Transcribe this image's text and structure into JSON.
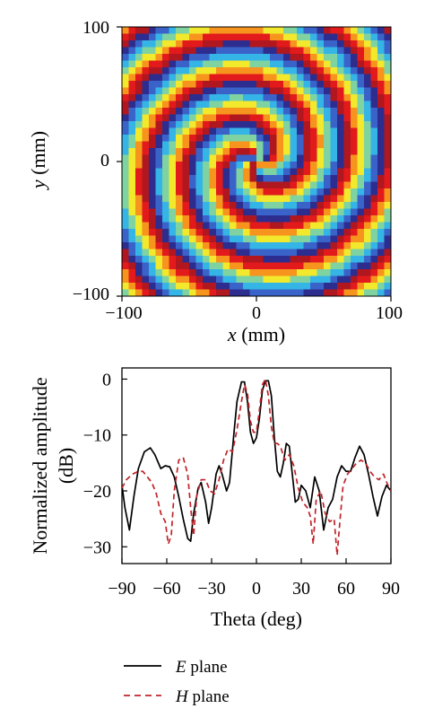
{
  "chart_data": [
    {
      "type": "heatmap",
      "xlabel_var": "x",
      "xlabel_unit": " (mm)",
      "ylabel_var": "y",
      "ylabel_unit": " (mm)",
      "xlim": [
        -100,
        100
      ],
      "ylim": [
        -100,
        100
      ],
      "x_ticks": [
        "−100",
        "0",
        "100"
      ],
      "y_ticks": [
        "100",
        "0",
        "−100"
      ],
      "grid_cells": 40,
      "spiral_arms": 3,
      "colormap": [
        "#2d2d8f",
        "#3a63c9",
        "#35b4e6",
        "#7fd3a0",
        "#f2e82c",
        "#f7941d",
        "#e31a1c",
        "#b0171f"
      ]
    },
    {
      "type": "line",
      "xlabel": "Theta (deg)",
      "ylabel_line1": "Normalized amplitude",
      "ylabel_line2": "(dB)",
      "xlim": [
        -90,
        90
      ],
      "ylim": [
        -33,
        2
      ],
      "x_ticks": [
        "−90",
        "−60",
        "−30",
        "0",
        "30",
        "60",
        "90"
      ],
      "x_tick_values": [
        -90,
        -60,
        -30,
        0,
        30,
        60,
        90
      ],
      "y_ticks": [
        "0",
        "−10",
        "−20",
        "−30"
      ],
      "y_tick_values": [
        0,
        -10,
        -20,
        -30
      ],
      "grid": false,
      "legend_position": "bottom",
      "series": [
        {
          "var": "E",
          "name": " plane",
          "color": "#000000",
          "dash": "solid",
          "x": [
            -90,
            -88,
            -85,
            -82,
            -79,
            -75,
            -71,
            -68,
            -64,
            -61,
            -58,
            -55,
            -52,
            -49,
            -46,
            -44,
            -42,
            -39,
            -37,
            -34,
            -32,
            -30,
            -27,
            -25,
            -23,
            -20,
            -18,
            -15,
            -13,
            -10,
            -8,
            -6,
            -4,
            -2,
            0,
            2,
            4,
            6,
            8,
            10,
            12,
            14,
            16,
            18,
            20,
            22,
            24,
            26,
            28,
            30,
            33,
            36,
            39,
            42,
            45,
            48,
            51,
            54,
            57,
            60,
            63,
            66,
            69,
            72,
            75,
            78,
            81,
            84,
            87,
            90
          ],
          "y": [
            -19,
            -23,
            -27,
            -21,
            -16,
            -13,
            -12.3,
            -13.5,
            -16,
            -15.5,
            -15.7,
            -17.5,
            -21,
            -25,
            -28.5,
            -29,
            -24,
            -19.5,
            -18.5,
            -22,
            -25.8,
            -23,
            -17,
            -15.5,
            -17,
            -20,
            -18.5,
            -9.5,
            -4,
            -0.5,
            -0.5,
            -4,
            -9.5,
            -11.5,
            -10.5,
            -7,
            -2,
            -0.3,
            -0.3,
            -3,
            -10.5,
            -16.5,
            -17.5,
            -15,
            -11.5,
            -12,
            -17,
            -22,
            -21.5,
            -19,
            -20,
            -23,
            -17.5,
            -20,
            -27,
            -23,
            -21.5,
            -17.5,
            -15.5,
            -16.5,
            -16.5,
            -14,
            -12,
            -13.5,
            -17,
            -21,
            -24.5,
            -21,
            -19,
            -20
          ]
        },
        {
          "var": "H",
          "name": " plane",
          "color": "#c0242a",
          "dash": "dashed",
          "x": [
            -90,
            -87,
            -83,
            -79,
            -76,
            -73,
            -70,
            -67,
            -64,
            -61,
            -59,
            -57,
            -55,
            -52,
            -49,
            -46,
            -44,
            -42,
            -40,
            -37,
            -34,
            -31,
            -28,
            -25,
            -22,
            -19,
            -16,
            -13,
            -10,
            -8,
            -6,
            -4,
            -2,
            0,
            2,
            4,
            6,
            8,
            10,
            12,
            14,
            16,
            19,
            22,
            25,
            28,
            31,
            34,
            36,
            38,
            40,
            43,
            46,
            49,
            52,
            54,
            56,
            58,
            61,
            64,
            67,
            70,
            73,
            76,
            79,
            82,
            85,
            88,
            90
          ],
          "y": [
            -19.5,
            -18,
            -17,
            -16.5,
            -16.5,
            -17.5,
            -18.5,
            -20.5,
            -24,
            -25.5,
            -29.5,
            -28,
            -20,
            -14.5,
            -14,
            -17,
            -23,
            -28,
            -21,
            -18,
            -18,
            -20,
            -20.5,
            -18,
            -14.5,
            -12.5,
            -13,
            -9,
            -4,
            -1,
            -2.5,
            -7.5,
            -9.5,
            -9.5,
            -5.5,
            -1,
            0,
            -3,
            -8.5,
            -11.5,
            -11.5,
            -12,
            -14.5,
            -13.5,
            -15.5,
            -19.5,
            -22,
            -23,
            -24.5,
            -29.5,
            -21.5,
            -20,
            -24,
            -25.5,
            -25,
            -31.5,
            -25,
            -19,
            -17,
            -16,
            -15,
            -14.5,
            -15,
            -16.5,
            -17.5,
            -18,
            -17,
            -19,
            -20
          ]
        }
      ]
    }
  ]
}
